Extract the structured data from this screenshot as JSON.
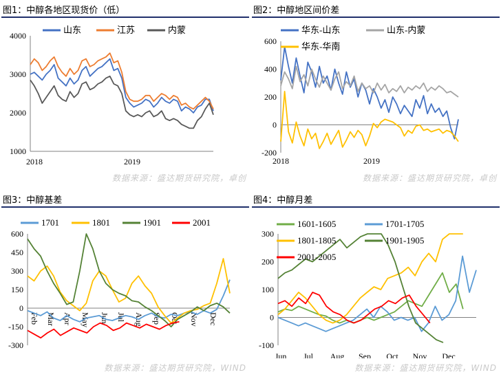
{
  "panels": [
    {
      "title": "图1：中醇各地区现货价（低）",
      "source": "数据来源：盛达期货研究院，卓创"
    },
    {
      "title": "图2：中醇地区间价差",
      "source": "数据来源：盛达期货研究院，卓创"
    },
    {
      "title": "图3：中醇基差",
      "source": "数据来源：盛达期货研究院，WIND"
    },
    {
      "title": "图4：中醇月差",
      "source": "数据来源：盛达期货研究院，WIND"
    }
  ],
  "chart_data": [
    {
      "type": "line",
      "title": "图1：中醇各地区现货价（低）",
      "ylim": [
        1000,
        4000
      ],
      "yticks": [
        1000,
        2000,
        3000,
        4000
      ],
      "xticks": [
        "2018",
        "2019"
      ],
      "legend_position": "top",
      "series": [
        {
          "name": "山东",
          "color": "#4472c4",
          "values": [
            3000,
            3050,
            2950,
            2850,
            3000,
            3100,
            3250,
            2900,
            2800,
            2700,
            2900,
            2750,
            2850,
            3100,
            3200,
            2950,
            3050,
            3150,
            3200,
            3300,
            3400,
            3100,
            3150,
            2900,
            2400,
            2250,
            2150,
            2200,
            2250,
            2350,
            2300,
            2150,
            2250,
            2400,
            2300,
            2250,
            2350,
            2300,
            2050,
            2150,
            2100,
            2000,
            2150,
            2200,
            2350,
            2350,
            2050
          ]
        },
        {
          "name": "江苏",
          "color": "#ed7d31",
          "values": [
            3250,
            3400,
            3300,
            3100,
            3200,
            3350,
            3450,
            3200,
            3050,
            2950,
            3150,
            3000,
            3100,
            3350,
            3400,
            3200,
            3250,
            3350,
            3400,
            3450,
            3550,
            3300,
            3350,
            3050,
            2550,
            2350,
            2300,
            2300,
            2350,
            2450,
            2450,
            2300,
            2400,
            2500,
            2450,
            2350,
            2450,
            2400,
            2200,
            2250,
            2150,
            2100,
            2200,
            2300,
            2400,
            2300,
            2100
          ]
        },
        {
          "name": "内蒙",
          "color": "#595959",
          "values": [
            2850,
            2700,
            2500,
            2250,
            2400,
            2550,
            2700,
            2450,
            2350,
            2300,
            2550,
            2400,
            2500,
            2750,
            2800,
            2600,
            2650,
            2750,
            2800,
            2900,
            2950,
            2750,
            2700,
            2500,
            2050,
            1950,
            1900,
            1950,
            1900,
            2000,
            2050,
            1900,
            1950,
            2050,
            1850,
            1800,
            1850,
            1800,
            1700,
            1650,
            1600,
            1600,
            1800,
            1900,
            2100,
            2250,
            1950
          ]
        }
      ]
    },
    {
      "type": "line",
      "title": "图2：中醇地区间价差",
      "ylim": [
        -200,
        600
      ],
      "yticks": [
        -200,
        0,
        200,
        400,
        600
      ],
      "xticks": [
        "2018",
        "2019"
      ],
      "legend_position": "top",
      "series": [
        {
          "name": "华东-山东",
          "color": "#4472c4",
          "values": [
            320,
            560,
            420,
            300,
            480,
            350,
            230,
            450,
            380,
            270,
            420,
            300,
            350,
            250,
            400,
            300,
            220,
            380,
            270,
            330,
            200,
            300,
            250,
            150,
            260,
            200,
            120,
            180,
            90,
            200,
            150,
            80,
            140,
            100,
            60,
            180,
            120,
            210,
            80,
            150,
            90,
            120,
            60,
            100,
            -20,
            -100,
            40
          ]
        },
        {
          "name": "山东-内蒙",
          "color": "#a5a5a5",
          "values": [
            280,
            380,
            330,
            260,
            420,
            310,
            360,
            280,
            400,
            330,
            270,
            350,
            300,
            250,
            330,
            380,
            260,
            310,
            280,
            350,
            240,
            300,
            260,
            280,
            230,
            300,
            250,
            290,
            230,
            260,
            240,
            280,
            230,
            270,
            250,
            280,
            260,
            300,
            240,
            270,
            250,
            280,
            260,
            230,
            240,
            220,
            200
          ]
        },
        {
          "name": "华东-华南",
          "color": "#ffc000",
          "values": [
            -120,
            240,
            -50,
            -130,
            20,
            -80,
            -150,
            -30,
            -100,
            -60,
            -170,
            -120,
            -60,
            -140,
            -90,
            -40,
            -160,
            -110,
            -50,
            -90,
            -40,
            -70,
            -150,
            -80,
            10,
            -20,
            20,
            40,
            30,
            20,
            0,
            -20,
            -80,
            -40,
            -60,
            -10,
            0,
            -40,
            -30,
            -50,
            -40,
            -30,
            -60,
            -40,
            -50,
            -80,
            -120
          ]
        }
      ]
    },
    {
      "type": "line",
      "title": "图3：中醇基差",
      "ylim": [
        -300,
        600
      ],
      "yticks": [
        -300,
        -150,
        0,
        150,
        300,
        450,
        600
      ],
      "xticks": [
        "Feb",
        "Mar",
        "Apr",
        "May",
        "Jun",
        "Jul",
        "Aug",
        "Sep",
        "Oct",
        "Nov",
        "Dec"
      ],
      "legend_position": "top",
      "series": [
        {
          "name": "1701",
          "color": "#5b9bd5",
          "values": [
            -20,
            -40,
            -60,
            -30,
            -80,
            -100,
            -60,
            -90,
            -110,
            -80,
            -70,
            -60,
            -90,
            -100,
            -80,
            -60,
            -70,
            -90,
            -60,
            -40,
            -70,
            -80,
            -50,
            -60,
            -40,
            -30,
            -50,
            -20,
            -40,
            -10,
            100,
            230
          ]
        },
        {
          "name": "1801",
          "color": "#ffc000",
          "values": [
            260,
            220,
            300,
            340,
            260,
            130,
            60,
            20,
            -20,
            40,
            220,
            300,
            260,
            150,
            50,
            80,
            200,
            260,
            180,
            120,
            10,
            -60,
            -120,
            -80,
            -40,
            -20,
            -10,
            20,
            40,
            200,
            400,
            120
          ]
        },
        {
          "name": "1901",
          "color": "#548235",
          "values": [
            560,
            480,
            420,
            300,
            200,
            120,
            30,
            50,
            300,
            600,
            480,
            300,
            200,
            150,
            120,
            100,
            60,
            50,
            10,
            -20,
            -60,
            -100,
            -150,
            -90,
            -60,
            -30,
            10,
            -20,
            20,
            40,
            10,
            -40
          ]
        },
        {
          "name": "2001",
          "color": "#ff0000",
          "values": [
            -180,
            -210,
            -240,
            -200,
            -170,
            -220,
            -190,
            -160,
            -180,
            -200,
            -150,
            -120,
            -140,
            -180,
            -160,
            -120,
            -140,
            -160,
            -130,
            -150,
            -170,
            -140,
            -120,
            -110
          ]
        }
      ]
    },
    {
      "type": "line",
      "title": "图4：中醇月差",
      "ylim": [
        -100,
        300
      ],
      "yticks": [
        -100,
        0,
        100,
        200,
        300
      ],
      "xticks": [
        "Jun",
        "Jul",
        "Aug",
        "Sep",
        "Oct",
        "Nov",
        "Dec"
      ],
      "legend_position": "top",
      "series": [
        {
          "name": "1601-1605",
          "color": "#70ad47",
          "values": [
            20,
            30,
            25,
            40,
            30,
            20,
            10,
            5,
            -10,
            -20,
            -10,
            -20,
            -10,
            0,
            -10,
            0,
            10,
            20,
            40,
            60,
            50,
            40,
            80,
            120,
            160,
            90,
            120,
            30
          ]
        },
        {
          "name": "1701-1705",
          "color": "#5b9bd5",
          "values": [
            0,
            -10,
            -20,
            -30,
            -20,
            -30,
            -40,
            -50,
            -40,
            -30,
            -20,
            -10,
            10,
            30,
            0,
            40,
            20,
            -10,
            0,
            -10,
            0,
            -50,
            -20,
            40,
            -10,
            10,
            60,
            220,
            90,
            170
          ]
        },
        {
          "name": "1801-1805",
          "color": "#ffc000",
          "values": [
            10,
            30,
            60,
            90,
            70,
            40,
            10,
            -10,
            -20,
            -10,
            10,
            40,
            70,
            90,
            110,
            100,
            140,
            150,
            160,
            180,
            150,
            200,
            230,
            200,
            280,
            320,
            300,
            320
          ]
        },
        {
          "name": "1901-1905",
          "color": "#548235",
          "values": [
            140,
            160,
            170,
            190,
            210,
            200,
            220,
            240,
            260,
            280,
            250,
            270,
            290,
            310,
            300,
            310,
            260,
            200,
            120,
            40,
            -20,
            -40,
            -60,
            -80,
            -90
          ]
        },
        {
          "name": "2001-2005",
          "color": "#ff0000",
          "values": [
            50,
            60,
            40,
            70,
            50,
            90,
            80,
            40,
            20,
            10,
            -10,
            -20,
            -10,
            10,
            30,
            40,
            60,
            50,
            70,
            80,
            40,
            10,
            -20
          ]
        }
      ]
    }
  ]
}
